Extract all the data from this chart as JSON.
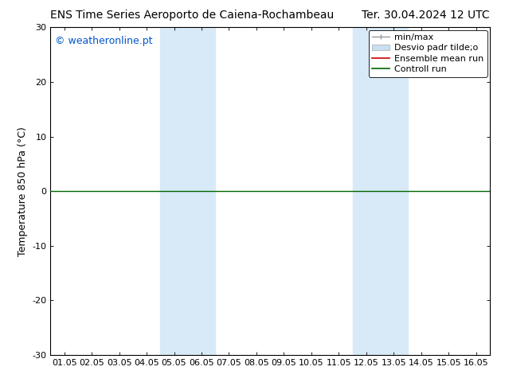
{
  "title_left": "ENS Time Series Aeroporto de Caiena-Rochambeau",
  "title_right": "Ter. 30.04.2024 12 UTC",
  "ylabel": "Temperature 850 hPa (°C)",
  "watermark": "© weatheronline.pt",
  "watermark_color": "#0055cc",
  "ylim": [
    -30,
    30
  ],
  "yticks": [
    -30,
    -20,
    -10,
    0,
    10,
    20,
    30
  ],
  "xtick_labels": [
    "01.05",
    "02.05",
    "03.05",
    "04.05",
    "05.05",
    "06.05",
    "07.05",
    "08.05",
    "09.05",
    "10.05",
    "11.05",
    "12.05",
    "13.05",
    "14.05",
    "15.05",
    "16.05"
  ],
  "xtick_positions": [
    0,
    1,
    2,
    3,
    4,
    5,
    6,
    7,
    8,
    9,
    10,
    11,
    12,
    13,
    14,
    15
  ],
  "xlim_start": -0.5,
  "xlim_end": 15.5,
  "shaded_bands": [
    {
      "x_start": 3.5,
      "x_end": 5.5
    },
    {
      "x_start": 10.5,
      "x_end": 12.5
    }
  ],
  "shade_color": "#d8eaf8",
  "control_run_y": 0,
  "control_run_color": "#006600",
  "ensemble_mean_color": "#cc0000",
  "minmax_color": "#999999",
  "stddev_color": "#c8dff0",
  "background_color": "#ffffff",
  "title_fontsize": 10,
  "axis_label_fontsize": 9,
  "tick_fontsize": 8,
  "legend_fontsize": 8,
  "watermark_fontsize": 9
}
